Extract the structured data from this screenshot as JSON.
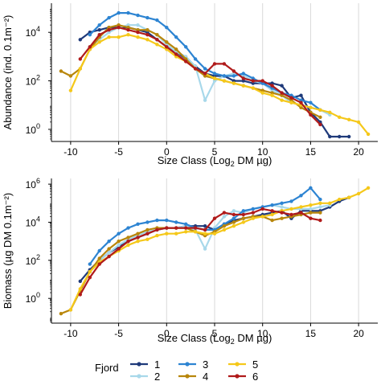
{
  "fjord_colors": {
    "1": "#1f3a7a",
    "2": "#a8d8ea",
    "3": "#2d84d2",
    "4": "#b8860b",
    "5": "#f5c81a",
    "6": "#b01a1a"
  },
  "chart_data": [
    {
      "type": "line",
      "ylabel": "Abundance (ind. 0.1m⁻²)",
      "xlabel_main": "Size Class (Log",
      "xlabel_sub": "2",
      "xlabel_end": " DM µg)",
      "y_scale": "log10",
      "xlim": [
        -12,
        22
      ],
      "ylim_log10": [
        -0.5,
        5.2
      ],
      "x_ticks": [
        -10,
        -5,
        0,
        5,
        10,
        15,
        20
      ],
      "x_tick_labels": [
        "-10",
        "-5",
        "0",
        "5",
        "10",
        "15",
        "20"
      ],
      "y_ticks": [
        0,
        2,
        4
      ],
      "y_tick_base": "10",
      "y_tick_exps": [
        "0",
        "2",
        "4"
      ],
      "grid": "vertical",
      "series": [
        {
          "name": "1",
          "x": [
            -9,
            -8,
            -7,
            -6,
            -5,
            -4,
            -3,
            -2,
            -1,
            0,
            1,
            2,
            3,
            4,
            5,
            6,
            7,
            8,
            9,
            10,
            11,
            12,
            13,
            14,
            15,
            16,
            17,
            18,
            19
          ],
          "y_log10": [
            3.7,
            4.0,
            4.1,
            4.2,
            4.2,
            4.2,
            4.1,
            4.0,
            3.7,
            3.4,
            3.2,
            2.9,
            2.6,
            2.3,
            2.2,
            2.2,
            2.0,
            2.0,
            1.9,
            1.9,
            1.9,
            1.8,
            1.3,
            1.4,
            0.7,
            0.3,
            -0.3,
            -0.3,
            -0.3
          ]
        },
        {
          "name": "2",
          "x": [
            -8,
            -7,
            -6,
            -5,
            -4,
            -3,
            -2,
            -1,
            0,
            1,
            2,
            3,
            4,
            5,
            6,
            7,
            8,
            9,
            10,
            11,
            12,
            13,
            14,
            15,
            16,
            17
          ],
          "y_log10": [
            3.4,
            3.7,
            4.0,
            4.2,
            4.3,
            4.3,
            4.1,
            3.9,
            3.5,
            3.2,
            3.0,
            2.6,
            1.2,
            2.0,
            2.2,
            2.3,
            2.2,
            2.0,
            1.9,
            1.6,
            1.4,
            1.1,
            1.0,
            0.9,
            0.8,
            0.6
          ]
        },
        {
          "name": "3",
          "x": [
            -8,
            -7,
            -6,
            -5,
            -4,
            -3,
            -2,
            -1,
            0,
            1,
            2,
            3,
            4,
            5,
            6,
            7,
            8,
            9,
            10,
            11,
            12,
            13,
            14,
            15,
            16
          ],
          "y_log10": [
            3.9,
            4.3,
            4.6,
            4.8,
            4.8,
            4.7,
            4.6,
            4.5,
            4.2,
            3.8,
            3.4,
            2.9,
            2.5,
            2.3,
            2.2,
            2.2,
            2.3,
            2.1,
            1.9,
            1.7,
            1.5,
            1.4,
            1.2,
            1.1,
            0.8
          ]
        },
        {
          "name": "4",
          "x": [
            -11,
            -10,
            -9,
            -8,
            -7,
            -6,
            -5,
            -4,
            -3,
            -2,
            -1,
            0,
            1,
            2,
            3,
            4,
            5,
            6,
            7,
            8,
            9,
            10,
            11,
            12,
            13,
            14,
            15,
            16
          ],
          "y_log10": [
            2.4,
            2.2,
            2.5,
            3.3,
            3.8,
            4.2,
            4.3,
            4.2,
            4.1,
            4.1,
            3.9,
            3.6,
            3.3,
            2.9,
            2.5,
            2.2,
            2.1,
            2.0,
            1.9,
            1.8,
            1.7,
            1.6,
            1.5,
            1.4,
            1.2,
            0.9,
            0.7,
            0.5
          ]
        },
        {
          "name": "5",
          "x": [
            -10,
            -9,
            -8,
            -7,
            -6,
            -5,
            -4,
            -3,
            -2,
            -1,
            0,
            1,
            2,
            3,
            4,
            5,
            6,
            7,
            8,
            9,
            10,
            11,
            12,
            13,
            14,
            15,
            16,
            17,
            18,
            19,
            20,
            21
          ],
          "y_log10": [
            1.6,
            2.5,
            3.3,
            3.6,
            3.8,
            3.8,
            3.9,
            3.8,
            3.7,
            3.5,
            3.3,
            3.0,
            2.8,
            2.5,
            2.3,
            2.1,
            2.0,
            1.9,
            1.8,
            1.7,
            1.5,
            1.4,
            1.2,
            1.1,
            1.0,
            0.9,
            0.8,
            0.7,
            0.5,
            0.4,
            0.3,
            -0.2
          ]
        },
        {
          "name": "6",
          "x": [
            -9,
            -8,
            -7,
            -6,
            -5,
            -4,
            -3,
            -2,
            -1,
            0,
            1,
            2,
            3,
            4,
            5,
            6,
            7,
            8,
            9,
            10,
            11,
            12,
            13,
            14,
            15,
            16
          ],
          "y_log10": [
            2.9,
            3.4,
            3.9,
            4.1,
            4.2,
            4.1,
            4.0,
            3.9,
            3.7,
            3.4,
            3.1,
            2.8,
            2.5,
            2.3,
            2.7,
            2.7,
            2.4,
            2.1,
            2.0,
            2.0,
            1.8,
            1.5,
            1.3,
            1.1,
            0.6,
            0.2
          ]
        }
      ]
    },
    {
      "type": "line",
      "ylabel": "Biomass (µg DM 0.1m⁻²)",
      "xlabel_main": "Size Class (Log",
      "xlabel_sub": "2",
      "xlabel_end": " DM µg)",
      "y_scale": "log10",
      "xlim": [
        -12,
        22
      ],
      "ylim_log10": [
        -1.3,
        6.3
      ],
      "x_ticks": [
        -10,
        -5,
        0,
        5,
        10,
        15,
        20
      ],
      "x_tick_labels": [
        "-10",
        "-5",
        "0",
        "5",
        "10",
        "15",
        "20"
      ],
      "y_ticks": [
        0,
        2,
        4,
        6
      ],
      "y_tick_base": "10",
      "y_tick_exps": [
        "0",
        "2",
        "4",
        "6"
      ],
      "grid": "vertical",
      "series": [
        {
          "name": "1",
          "x": [
            -9,
            -8,
            -7,
            -6,
            -5,
            -4,
            -3,
            -2,
            -1,
            0,
            1,
            2,
            3,
            4,
            5,
            6,
            7,
            8,
            9,
            10,
            11,
            12,
            13,
            14,
            15,
            16,
            17,
            18,
            19
          ],
          "y_log10": [
            0.9,
            1.5,
            2.0,
            2.4,
            2.7,
            3.0,
            3.2,
            3.4,
            3.6,
            3.7,
            3.7,
            3.8,
            3.8,
            3.8,
            3.6,
            3.9,
            4.1,
            4.2,
            4.3,
            4.4,
            4.5,
            4.6,
            4.2,
            4.6,
            4.6,
            4.6,
            4.8,
            5.1,
            5.3
          ]
        },
        {
          "name": "2",
          "x": [
            -8,
            -7,
            -6,
            -5,
            -4,
            -3,
            -2,
            -1,
            0,
            1,
            2,
            3,
            4,
            5,
            6,
            7,
            8,
            9,
            10,
            11,
            12,
            13,
            14,
            15,
            16,
            17
          ],
          "y_log10": [
            1.4,
            2.0,
            2.4,
            2.8,
            3.1,
            3.3,
            3.5,
            3.6,
            3.7,
            3.7,
            3.8,
            3.6,
            2.6,
            3.7,
            4.3,
            4.6,
            4.5,
            4.7,
            4.8,
            4.9,
            4.8,
            4.7,
            4.7,
            4.7,
            4.8,
            4.9
          ]
        },
        {
          "name": "3",
          "x": [
            -8,
            -7,
            -6,
            -5,
            -4,
            -3,
            -2,
            -1,
            0,
            1,
            2,
            3,
            4,
            5,
            6,
            7,
            8,
            9,
            10,
            11,
            12,
            13,
            14,
            15,
            16
          ],
          "y_log10": [
            1.8,
            2.5,
            3.0,
            3.4,
            3.7,
            3.9,
            4.0,
            4.1,
            4.1,
            4.0,
            3.9,
            3.7,
            3.6,
            3.6,
            3.9,
            4.2,
            4.6,
            4.7,
            4.8,
            4.9,
            5.0,
            5.1,
            5.4,
            5.8,
            5.2
          ]
        },
        {
          "name": "4",
          "x": [
            -11,
            -10,
            -9,
            -8,
            -7,
            -6,
            -5,
            -4,
            -3,
            -2,
            -1,
            0,
            1,
            2,
            3,
            4,
            5,
            6,
            7,
            8,
            9,
            10,
            11,
            12,
            13,
            14,
            15,
            16
          ],
          "y_log10": [
            -0.8,
            -0.6,
            0.4,
            1.4,
            2.1,
            2.6,
            3.0,
            3.2,
            3.4,
            3.6,
            3.7,
            3.7,
            3.7,
            3.7,
            3.5,
            3.3,
            3.5,
            3.8,
            4.0,
            4.2,
            4.3,
            4.3,
            4.1,
            4.2,
            4.3,
            4.4,
            4.5,
            4.5
          ]
        },
        {
          "name": "5",
          "x": [
            -10,
            -9,
            -8,
            -7,
            -6,
            -5,
            -4,
            -3,
            -2,
            -1,
            0,
            1,
            2,
            3,
            4,
            5,
            6,
            7,
            8,
            9,
            10,
            11,
            12,
            13,
            14,
            15,
            16,
            17,
            18,
            19,
            20,
            21
          ],
          "y_log10": [
            -0.6,
            0.5,
            1.4,
            1.9,
            2.2,
            2.5,
            2.8,
            3.0,
            3.1,
            3.3,
            3.4,
            3.4,
            3.5,
            3.5,
            3.4,
            3.4,
            3.6,
            3.8,
            4.0,
            4.2,
            4.3,
            4.4,
            4.6,
            4.7,
            4.8,
            4.9,
            5.0,
            5.0,
            5.2,
            5.3,
            5.5,
            5.8
          ]
        },
        {
          "name": "6",
          "x": [
            -9,
            -8,
            -7,
            -6,
            -5,
            -4,
            -3,
            -2,
            -1,
            0,
            1,
            2,
            3,
            4,
            5,
            6,
            7,
            8,
            9,
            10,
            11,
            12,
            13,
            14,
            15,
            16
          ],
          "y_log10": [
            0.2,
            1.1,
            1.8,
            2.2,
            2.6,
            3.0,
            3.2,
            3.4,
            3.6,
            3.7,
            3.7,
            3.7,
            3.7,
            3.6,
            4.2,
            4.5,
            4.4,
            4.4,
            4.5,
            4.7,
            4.6,
            4.5,
            4.4,
            4.5,
            4.2,
            4.1
          ]
        }
      ]
    }
  ],
  "legend": {
    "title": "Fjord",
    "labels": [
      "1",
      "2",
      "3",
      "4",
      "5",
      "6"
    ]
  }
}
